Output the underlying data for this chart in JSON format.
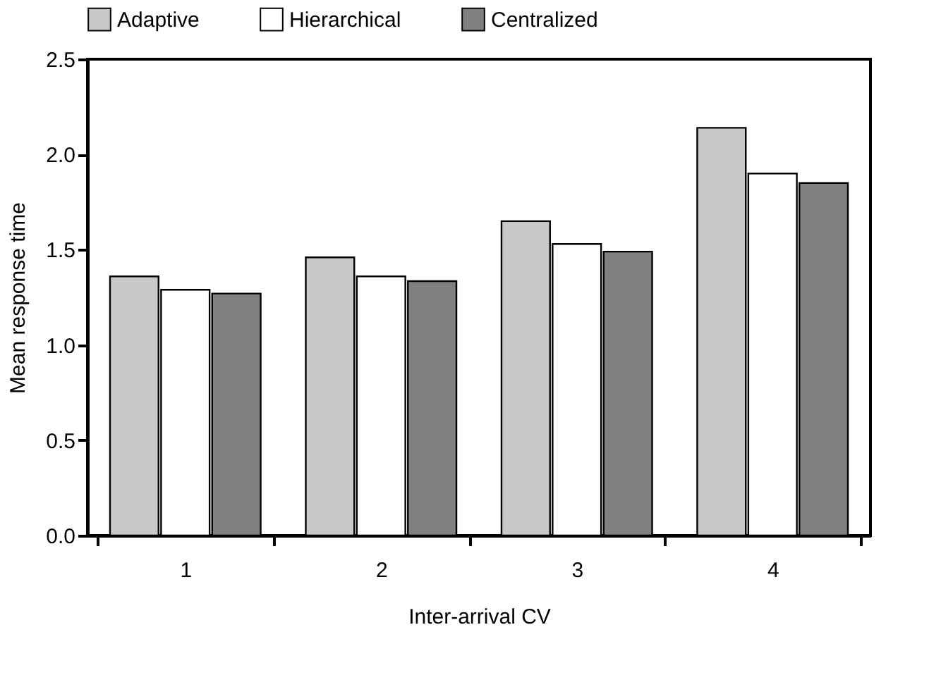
{
  "chart_data": {
    "type": "bar",
    "xlabel": "Inter-arrival CV",
    "ylabel": "Mean response time",
    "categories": [
      "1",
      "2",
      "3",
      "4"
    ],
    "series": [
      {
        "name": "Adaptive",
        "color": "#c8c8c8",
        "values": [
          1.36,
          1.46,
          1.65,
          2.14
        ]
      },
      {
        "name": "Hierarchical",
        "color": "#ffffff",
        "values": [
          1.29,
          1.36,
          1.53,
          1.9
        ]
      },
      {
        "name": "Centralized",
        "color": "#808080",
        "values": [
          1.27,
          1.335,
          1.49,
          1.85
        ]
      }
    ],
    "ylim": [
      0,
      2.5
    ],
    "yticks": [
      {
        "value": 0,
        "label": "0.0"
      },
      0.5,
      {
        "value": 1,
        "label": "1.0"
      },
      1.5,
      {
        "value": 2,
        "label": "2.0"
      },
      2.5
    ],
    "grid": false,
    "legend": "top"
  }
}
